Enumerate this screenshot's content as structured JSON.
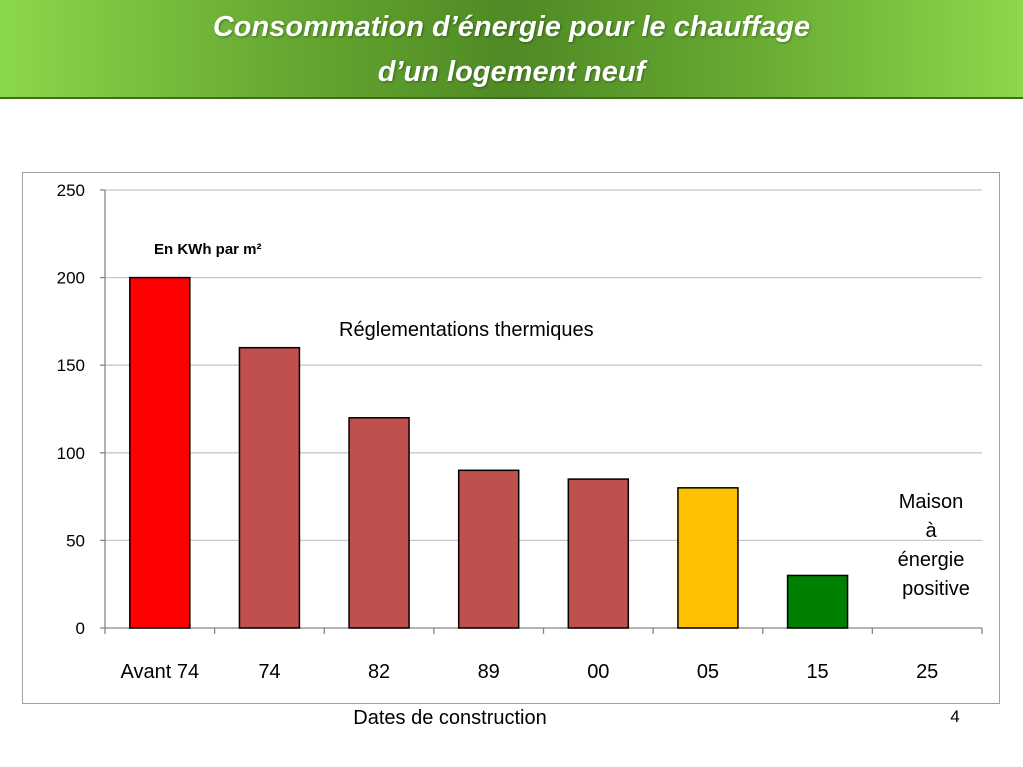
{
  "title": {
    "line1": "Consommation d’énergie pour le chauffage",
    "line2": "d’un logement neuf"
  },
  "page_number": "4",
  "colors": {
    "banner": "#66a832",
    "title_text": "#ffffff",
    "grid": "#c8c8c8"
  },
  "chart_data": {
    "type": "bar",
    "categories": [
      "Avant 74",
      "74",
      "82",
      "89",
      "00",
      "05",
      "15",
      "25"
    ],
    "values": [
      200,
      160,
      120,
      90,
      85,
      80,
      30,
      0
    ],
    "bar_colors": [
      "#ff0000",
      "#c0504d",
      "#c0504d",
      "#c0504d",
      "#c0504d",
      "#ffc000",
      "#008000",
      "#ffffff"
    ],
    "ylim": [
      0,
      250
    ],
    "yticks": [
      0,
      50,
      100,
      150,
      200,
      250
    ],
    "grid": true,
    "xlabel": "Dates de construction",
    "ylabel": "",
    "unit_label": "En KWh par m²",
    "annotations": {
      "regulations": "Réglementations thermiques",
      "positive_house": [
        "Maison",
        "à",
        "énergie",
        "positive"
      ]
    }
  }
}
